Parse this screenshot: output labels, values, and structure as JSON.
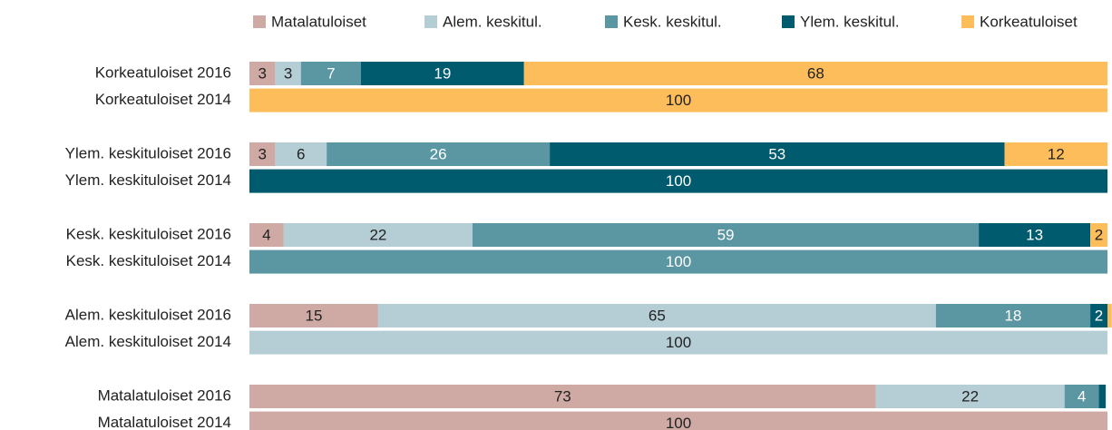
{
  "chart_data": {
    "type": "stacked-barh",
    "categories": [
      "Korkeatuloiset 2016",
      "Korkeatuloiset 2014",
      "Ylem. keskituloiset 2016",
      "Ylem. keskituloiset 2014",
      "Kesk. keskituloiset 2016",
      "Kesk. keskituloiset 2014",
      "Alem. keskituloiset 2016",
      "Alem. keskituloiset 2014",
      "Matalatuloiset 2016",
      "Matalatuloiset 2014"
    ],
    "series": [
      {
        "name": "Matalatuloiset",
        "color": "#cfa9a4",
        "label_color": "#222222",
        "values": [
          3,
          0,
          3,
          0,
          4,
          0,
          15,
          0,
          73,
          100
        ]
      },
      {
        "name": "Alem. keskitul.",
        "color": "#b5ced6",
        "label_color": "#222222",
        "values": [
          3,
          0,
          6,
          0,
          22,
          0,
          65,
          100,
          22,
          0
        ]
      },
      {
        "name": "Kesk. keskitul.",
        "color": "#5b96a3",
        "label_color": "#ffffff",
        "values": [
          7,
          0,
          26,
          0,
          59,
          100,
          18,
          0,
          4,
          0
        ]
      },
      {
        "name": "Ylem. keskitul.",
        "color": "#005b6e",
        "label_color": "#ffffff",
        "values": [
          19,
          0,
          53,
          100,
          13,
          0,
          2,
          0,
          0.8,
          0
        ]
      },
      {
        "name": "Korkeatuloiset",
        "color": "#fdbd5a",
        "label_color": "#222222",
        "values": [
          68,
          100,
          12,
          0,
          2,
          0,
          0.5,
          0,
          0,
          0
        ]
      }
    ],
    "xlim": [
      0,
      100
    ]
  }
}
